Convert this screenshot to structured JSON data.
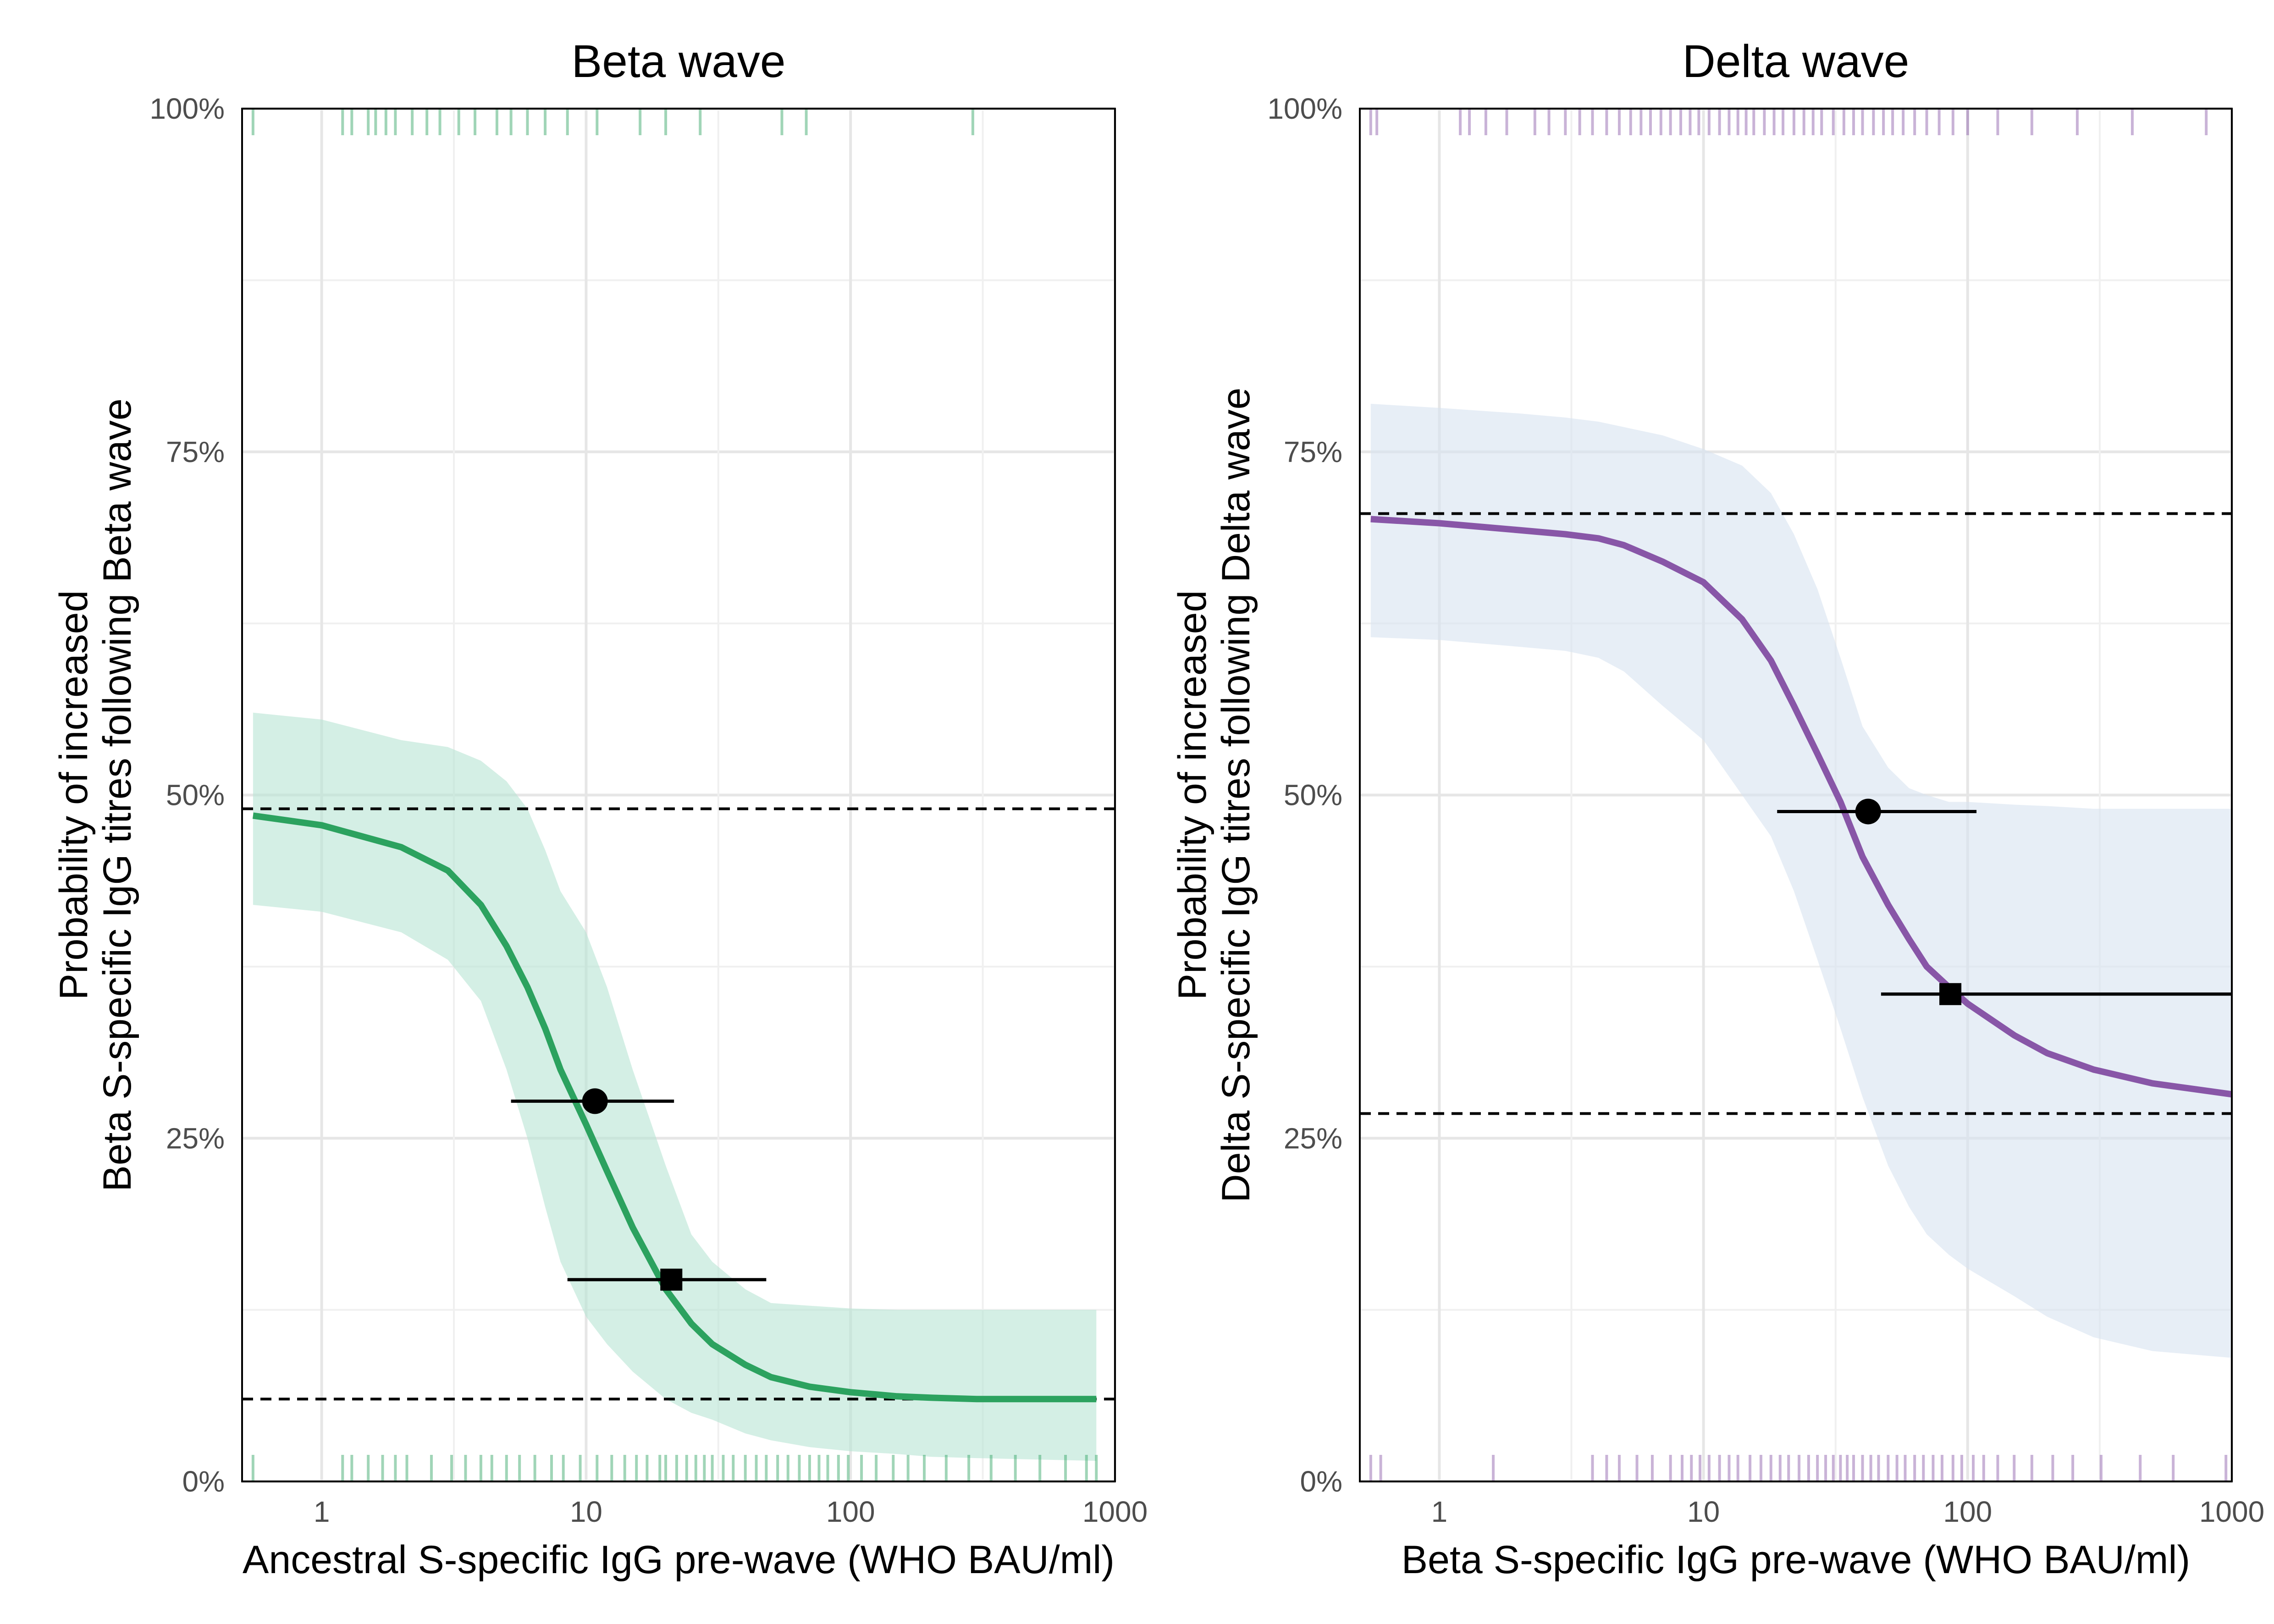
{
  "chart_data": [
    {
      "type": "line",
      "title": "Beta wave",
      "xlabel": "Ancestral S-specific IgG pre-wave (WHO BAU/ml)",
      "ylabel": [
        "Probability of increased",
        "Beta S-specific IgG titres following Beta wave"
      ],
      "x_scale": "log10",
      "xlim": [
        0.5,
        1000
      ],
      "ylim": [
        0,
        1
      ],
      "x_ticks": [
        1,
        10,
        100,
        1000
      ],
      "x_tick_labels": [
        "1",
        "10",
        "100",
        "1000"
      ],
      "y_ticks": [
        0,
        0.25,
        0.5,
        0.75,
        1
      ],
      "y_tick_labels": [
        "0%",
        "25%",
        "50%",
        "75%",
        "100%"
      ],
      "grid": true,
      "colors": {
        "line": "#2ca25f",
        "band": "#b7e4d4",
        "rug": "#2ca25f"
      },
      "curve": {
        "x": [
          0.55,
          1,
          2,
          3,
          4,
          5,
          6,
          7,
          8,
          10,
          12,
          15,
          20,
          25,
          30,
          40,
          50,
          70,
          100,
          150,
          200,
          300,
          500,
          850
        ],
        "y": [
          0.485,
          0.478,
          0.462,
          0.445,
          0.42,
          0.39,
          0.36,
          0.33,
          0.3,
          0.26,
          0.226,
          0.185,
          0.14,
          0.115,
          0.1,
          0.085,
          0.076,
          0.069,
          0.065,
          0.062,
          0.061,
          0.06,
          0.06,
          0.06
        ],
        "lower": [
          0.42,
          0.415,
          0.4,
          0.38,
          0.35,
          0.3,
          0.25,
          0.2,
          0.16,
          0.12,
          0.1,
          0.08,
          0.06,
          0.05,
          0.045,
          0.035,
          0.03,
          0.025,
          0.022,
          0.02,
          0.018,
          0.017,
          0.016,
          0.015
        ],
        "upper": [
          0.56,
          0.555,
          0.54,
          0.535,
          0.525,
          0.51,
          0.49,
          0.46,
          0.43,
          0.4,
          0.36,
          0.3,
          0.23,
          0.18,
          0.16,
          0.14,
          0.13,
          0.128,
          0.126,
          0.125,
          0.125,
          0.125,
          0.125,
          0.125
        ]
      },
      "reference_lines": [
        0.49,
        0.06
      ],
      "point_estimates": [
        {
          "shape": "circle",
          "x": 10.8,
          "y": 0.277,
          "x_low": 5.2,
          "x_high": 21.5
        },
        {
          "shape": "square",
          "x": 21,
          "y": 0.147,
          "x_low": 8.5,
          "x_high": 48
        }
      ],
      "rug_top": [
        0.55,
        1.2,
        1.3,
        1.5,
        1.6,
        1.75,
        1.9,
        2.2,
        2.5,
        2.8,
        3.3,
        3.8,
        4.6,
        5.2,
        6.0,
        7.0,
        8.5,
        11,
        16,
        20,
        27,
        55,
        68,
        290
      ],
      "rug_bottom": [
        0.55,
        1.2,
        1.3,
        1.5,
        1.7,
        1.9,
        2.1,
        2.6,
        3.1,
        3.5,
        4.0,
        4.4,
        5.0,
        5.6,
        6.4,
        7.4,
        8.2,
        9.5,
        11,
        12.5,
        14,
        15.5,
        17,
        19,
        20,
        22,
        24,
        26,
        28,
        30,
        33,
        36,
        40,
        44,
        48,
        53,
        58,
        64,
        70,
        76,
        82,
        90,
        98,
        110,
        125,
        145,
        165,
        190,
        230,
        280,
        340,
        420,
        520,
        650,
        780,
        850
      ]
    },
    {
      "type": "line",
      "title": "Delta wave",
      "xlabel": "Beta S-specific IgG pre-wave (WHO BAU/ml)",
      "ylabel": [
        "Probability of increased",
        "Delta S-specific IgG titres following Delta wave"
      ],
      "x_scale": "log10",
      "xlim": [
        0.5,
        1000
      ],
      "ylim": [
        0,
        1
      ],
      "x_ticks": [
        1,
        10,
        100,
        1000
      ],
      "x_tick_labels": [
        "1",
        "10",
        "100",
        "1000"
      ],
      "y_ticks": [
        0,
        0.25,
        0.5,
        0.75,
        1
      ],
      "y_tick_labels": [
        "0%",
        "25%",
        "50%",
        "75%",
        "100%"
      ],
      "grid": true,
      "colors": {
        "line": "#8856a7",
        "band": "#d7e3f0",
        "rug": "#8856a7"
      },
      "curve": {
        "x": [
          0.55,
          1,
          2,
          3,
          4,
          5,
          7,
          10,
          14,
          18,
          22,
          27,
          33,
          40,
          50,
          60,
          70,
          85,
          100,
          150,
          200,
          300,
          500,
          1000
        ],
        "y": [
          0.701,
          0.698,
          0.693,
          0.69,
          0.687,
          0.682,
          0.67,
          0.655,
          0.628,
          0.598,
          0.565,
          0.53,
          0.495,
          0.455,
          0.42,
          0.395,
          0.375,
          0.36,
          0.348,
          0.325,
          0.312,
          0.3,
          0.29,
          0.282
        ],
        "lower": [
          0.615,
          0.613,
          0.608,
          0.605,
          0.6,
          0.59,
          0.565,
          0.54,
          0.5,
          0.47,
          0.43,
          0.38,
          0.33,
          0.28,
          0.23,
          0.2,
          0.18,
          0.165,
          0.155,
          0.135,
          0.12,
          0.105,
          0.095,
          0.09
        ],
        "upper": [
          0.785,
          0.782,
          0.778,
          0.775,
          0.772,
          0.768,
          0.762,
          0.752,
          0.74,
          0.72,
          0.69,
          0.65,
          0.6,
          0.55,
          0.52,
          0.505,
          0.5,
          0.495,
          0.495,
          0.493,
          0.492,
          0.49,
          0.49,
          0.49
        ]
      },
      "reference_lines": [
        0.705,
        0.268
      ],
      "point_estimates": [
        {
          "shape": "circle",
          "x": 42,
          "y": 0.488,
          "x_low": 19,
          "x_high": 108
        },
        {
          "shape": "square",
          "x": 86,
          "y": 0.355,
          "x_low": 47,
          "x_high": 1000
        }
      ],
      "rug_top": [
        0.55,
        0.58,
        1.2,
        1.3,
        1.5,
        1.8,
        2.3,
        2.6,
        3.0,
        3.4,
        3.8,
        4.3,
        4.8,
        5.3,
        5.8,
        6.3,
        6.9,
        7.5,
        8.2,
        8.9,
        9.6,
        10.5,
        11.5,
        12.5,
        13.5,
        14.5,
        15.5,
        17,
        18.5,
        20,
        22,
        24,
        26,
        28,
        31,
        34,
        37,
        40,
        44,
        48,
        52,
        57,
        63,
        70,
        78,
        88,
        100,
        130,
        175,
        260,
        420,
        800
      ],
      "rug_bottom": [
        0.55,
        0.6,
        1.6,
        3.8,
        4.3,
        4.8,
        5.6,
        6.4,
        7.5,
        8.3,
        9.0,
        9.7,
        10.5,
        11.5,
        12.5,
        13.5,
        15,
        16.5,
        18,
        19.5,
        21,
        23,
        25,
        27,
        29,
        31,
        33,
        35,
        37,
        40,
        43,
        46,
        50,
        54,
        58,
        63,
        68,
        74,
        80,
        88,
        95,
        105,
        115,
        130,
        150,
        175,
        210,
        250,
        320,
        450,
        600,
        950
      ]
    }
  ]
}
